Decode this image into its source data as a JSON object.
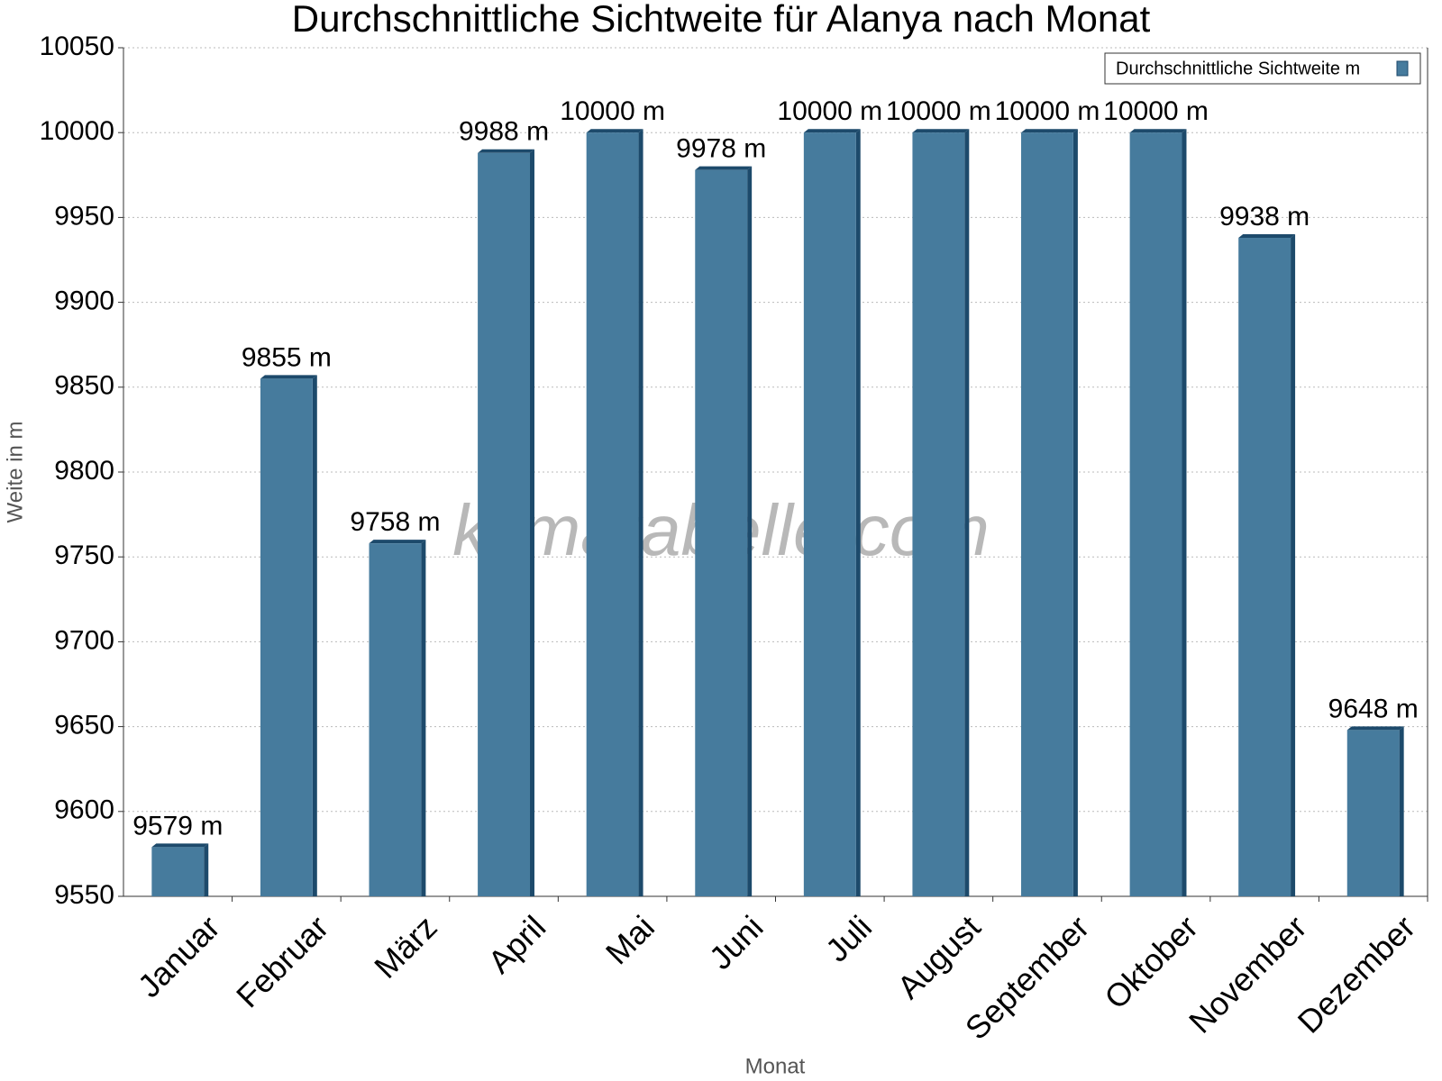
{
  "chart_data": {
    "type": "bar",
    "title": "Durchschnittliche Sichtweite für Alanya nach Monat",
    "x_label": "Monat",
    "y_label": "Weite in m",
    "watermark": "klimatabelle.com",
    "categories": [
      "Januar",
      "Februar",
      "März",
      "April",
      "Mai",
      "Juni",
      "Juli",
      "August",
      "September",
      "Oktober",
      "November",
      "Dezember"
    ],
    "series": [
      {
        "name": "Durchschnittliche Sichtweite m",
        "color": "#467b9d",
        "values": [
          9579,
          9855,
          9758,
          9988,
          10000,
          9978,
          10000,
          10000,
          10000,
          10000,
          9938,
          9648
        ],
        "value_labels": [
          "9579 m",
          "9855 m",
          "9758 m",
          "9988 m",
          "10000 m",
          "9978 m",
          "10000 m",
          "10000 m",
          "10000 m",
          "10000 m",
          "9938 m",
          "9648 m"
        ]
      }
    ],
    "ylim": [
      9550,
      10050
    ],
    "yticks": [
      9550,
      9600,
      9650,
      9700,
      9750,
      9800,
      9850,
      9900,
      9950,
      10000,
      10050
    ],
    "grid": true,
    "legend": "top-right"
  }
}
